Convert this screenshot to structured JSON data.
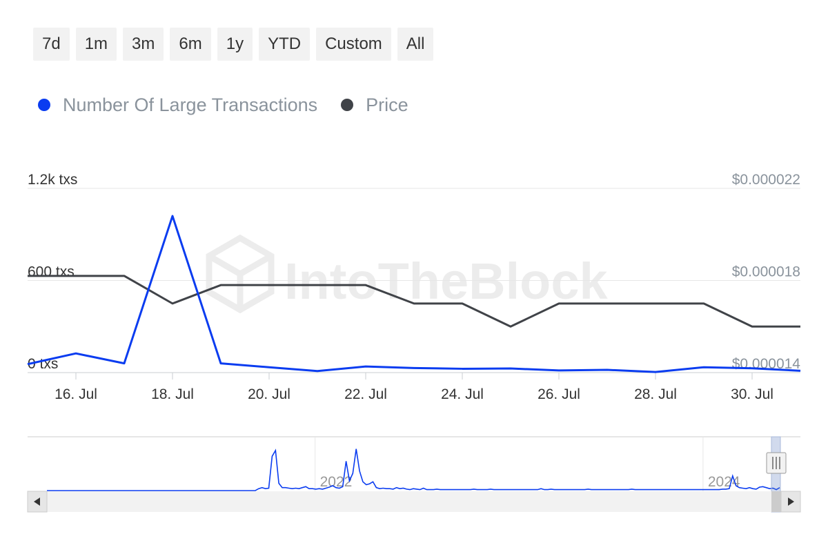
{
  "range_selector": {
    "buttons": [
      {
        "label": "7d"
      },
      {
        "label": "1m"
      },
      {
        "label": "3m"
      },
      {
        "label": "6m"
      },
      {
        "label": "1y"
      },
      {
        "label": "YTD"
      },
      {
        "label": "Custom"
      },
      {
        "label": "All"
      }
    ]
  },
  "legend": {
    "items": [
      {
        "label": "Number Of Large Transactions",
        "color": "#0a3cf0"
      },
      {
        "label": "Price",
        "color": "#404348"
      }
    ]
  },
  "watermark": "IntoTheBlock",
  "navigator": {
    "year_labels": [
      {
        "label": "2022",
        "pos": 0.372
      },
      {
        "label": "2024",
        "pos": 0.874
      }
    ],
    "series": [
      0,
      0,
      0,
      0,
      0,
      0,
      0,
      0,
      0,
      0,
      0,
      0,
      0,
      0,
      0,
      0,
      0,
      0,
      0,
      0,
      0,
      0,
      0,
      0,
      0,
      0,
      0,
      0,
      0,
      0,
      0,
      0,
      0,
      0,
      0,
      0,
      0,
      0,
      0,
      0,
      0,
      0,
      0,
      0,
      0,
      0,
      0,
      0,
      0,
      0,
      0,
      0,
      0,
      0,
      0,
      0,
      0,
      0,
      0,
      0,
      0,
      0,
      0,
      0.04,
      0.06,
      0.04,
      0.05,
      0.7,
      0.82,
      0.15,
      0.06,
      0.06,
      0.05,
      0.04,
      0.05,
      0.04,
      0.06,
      0.08,
      0.04,
      0.04,
      0.03,
      0.04,
      0.03,
      0.05,
      0.07,
      0.1,
      0.06,
      0.05,
      0.08,
      0.6,
      0.2,
      0.35,
      0.85,
      0.4,
      0.18,
      0.12,
      0.14,
      0.18,
      0.06,
      0.04,
      0.05,
      0.04,
      0.04,
      0.03,
      0.06,
      0.04,
      0.05,
      0.03,
      0.02,
      0.04,
      0.03,
      0.02,
      0.05,
      0.02,
      0.02,
      0.02,
      0.03,
      0.02,
      0.02,
      0.02,
      0.02,
      0.02,
      0.02,
      0.02,
      0.02,
      0.02,
      0.02,
      0.03,
      0.02,
      0.02,
      0.02,
      0.02,
      0.03,
      0.02,
      0.02,
      0.02,
      0.02,
      0.02,
      0.02,
      0.02,
      0.02,
      0.02,
      0.02,
      0.02,
      0.02,
      0.02,
      0.02,
      0.04,
      0.02,
      0.02,
      0.03,
      0.02,
      0.02,
      0.02,
      0.02,
      0.02,
      0.02,
      0.02,
      0.02,
      0.02,
      0.02,
      0.03,
      0.02,
      0.02,
      0.02,
      0.02,
      0.02,
      0.02,
      0.02,
      0.02,
      0.02,
      0.02,
      0.02,
      0.02,
      0.03,
      0.02,
      0.02,
      0.02,
      0.02,
      0.02,
      0.02,
      0.02,
      0.02,
      0.02,
      0.02,
      0.02,
      0.02,
      0.02,
      0.02,
      0.02,
      0.02,
      0.02,
      0.02,
      0.02,
      0.02,
      0.02,
      0.02,
      0.02,
      0.02,
      0.02,
      0.02,
      0.03,
      0.03,
      0.04,
      0.3,
      0.1,
      0.06,
      0.05,
      0.04,
      0.06,
      0.04,
      0.03,
      0.07,
      0.08,
      0.06,
      0.04,
      0.05,
      0.02,
      0.06
    ]
  },
  "chart_data": {
    "type": "line",
    "x": [
      "15 Jul",
      "16 Jul",
      "17 Jul",
      "18 Jul",
      "19 Jul",
      "20 Jul",
      "21 Jul",
      "22 Jul",
      "23 Jul",
      "24 Jul",
      "25 Jul",
      "26 Jul",
      "27 Jul",
      "28 Jul",
      "29 Jul",
      "30 Jul",
      "31 Jul"
    ],
    "x_tick_labels": [
      "16. Jul",
      "18. Jul",
      "20. Jul",
      "22. Jul",
      "24. Jul",
      "26. Jul",
      "28. Jul",
      "30. Jul"
    ],
    "series": [
      {
        "name": "Number Of Large Transactions",
        "color": "#0a3cf0",
        "axis": "left",
        "values": [
          55,
          125,
          60,
          1020,
          60,
          35,
          10,
          40,
          30,
          25,
          27,
          14,
          18,
          4,
          35,
          28,
          12
        ]
      },
      {
        "name": "Price",
        "color": "#404348",
        "axis": "right",
        "values": [
          1.82e-05,
          1.82e-05,
          1.82e-05,
          1.7e-05,
          1.78e-05,
          1.78e-05,
          1.78e-05,
          1.78e-05,
          1.7e-05,
          1.7e-05,
          1.6e-05,
          1.7e-05,
          1.7e-05,
          1.7e-05,
          1.7e-05,
          1.6e-05,
          1.6e-05
        ]
      }
    ],
    "y_left": {
      "ticks": [
        0,
        600,
        1200
      ],
      "tick_labels": [
        "0 txs",
        "600 txs",
        "1.2k txs"
      ],
      "range": [
        0,
        1200
      ]
    },
    "y_right": {
      "ticks": [
        1.4e-05,
        1.8e-05,
        2.2e-05
      ],
      "tick_labels": [
        "$0.000014",
        "$0.000018",
        "$0.000022"
      ],
      "range": [
        1.4e-05,
        2.2e-05
      ]
    },
    "grid": true,
    "legend_position": "top-left"
  }
}
